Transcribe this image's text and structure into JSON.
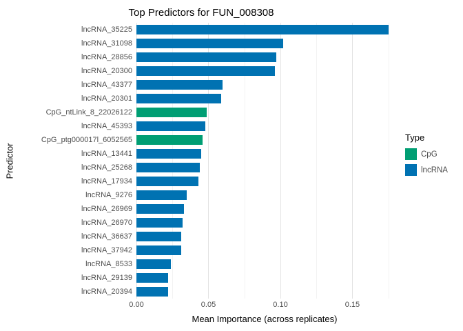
{
  "title": "Top Predictors for FUN_008308",
  "axes": {
    "x_label": "Mean Importance (across replicates)",
    "y_label": "Predictor"
  },
  "legend": {
    "title": "Type",
    "entries": [
      {
        "label": "CpG",
        "color": "#009E73"
      },
      {
        "label": "lncRNA",
        "color": "#0072B2"
      }
    ]
  },
  "colors": {
    "CpG": "#009E73",
    "lncRNA": "#0072B2",
    "grid_major": "#e3e3e3",
    "grid_minor": "#f2f2f2",
    "axis_text": "#4d4d4d"
  },
  "chart_data": {
    "type": "bar",
    "orientation": "horizontal",
    "title": "Top Predictors for FUN_008308",
    "xlabel": "Mean Importance (across replicates)",
    "ylabel": "Predictor",
    "xlim": [
      0,
      0.178
    ],
    "x_tick_values": [
      0,
      0.05,
      0.1,
      0.15
    ],
    "x_tick_labels": [
      "0.00",
      "0.05",
      "0.10",
      "0.15"
    ],
    "x_minor_tick_values": [
      0.025,
      0.075,
      0.125,
      0.175
    ],
    "grid": true,
    "legend_position": "right",
    "series_key": "Type",
    "categories": [
      "lncRNA_35225",
      "lncRNA_31098",
      "lncRNA_28856",
      "lncRNA_20300",
      "lncRNA_43377",
      "lncRNA_20301",
      "CpG_ntLink_8_22026122",
      "lncRNA_45393",
      "CpG_ptg000017l_6052565",
      "lncRNA_13441",
      "lncRNA_25268",
      "lncRNA_17934",
      "lncRNA_9276",
      "lncRNA_26969",
      "lncRNA_26970",
      "lncRNA_36637",
      "lncRNA_37942",
      "lncRNA_8533",
      "lncRNA_29139",
      "lncRNA_20394"
    ],
    "values": [
      0.175,
      0.102,
      0.097,
      0.096,
      0.06,
      0.059,
      0.049,
      0.048,
      0.046,
      0.045,
      0.044,
      0.043,
      0.035,
      0.033,
      0.032,
      0.031,
      0.031,
      0.024,
      0.022,
      0.022
    ],
    "types": [
      "lncRNA",
      "lncRNA",
      "lncRNA",
      "lncRNA",
      "lncRNA",
      "lncRNA",
      "CpG",
      "lncRNA",
      "CpG",
      "lncRNA",
      "lncRNA",
      "lncRNA",
      "lncRNA",
      "lncRNA",
      "lncRNA",
      "lncRNA",
      "lncRNA",
      "lncRNA",
      "lncRNA",
      "lncRNA"
    ]
  }
}
